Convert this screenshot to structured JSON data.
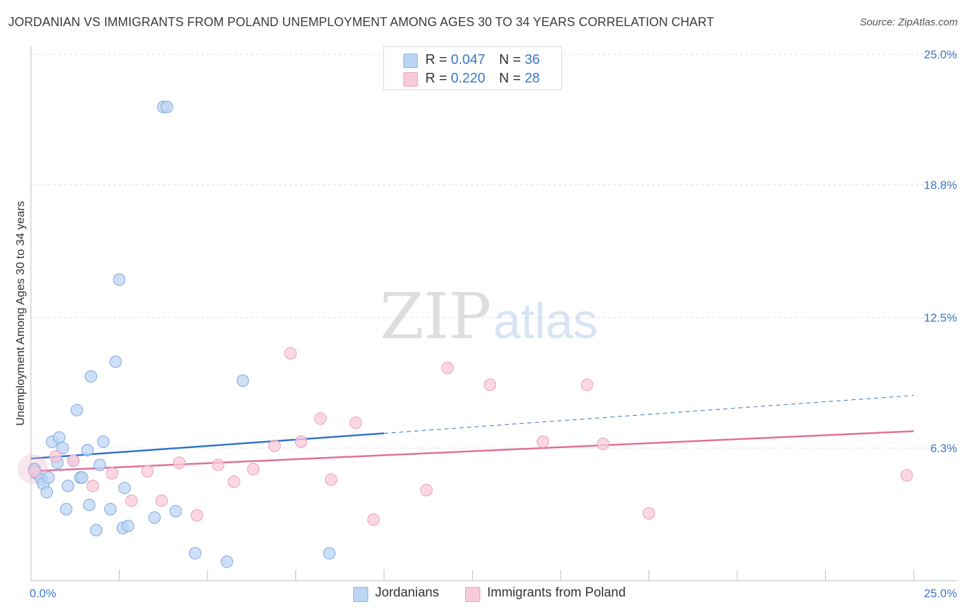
{
  "title": "JORDANIAN VS IMMIGRANTS FROM POLAND UNEMPLOYMENT AMONG AGES 30 TO 34 YEARS CORRELATION CHART",
  "source": "Source: ZipAtlas.com",
  "watermark": {
    "zip": "ZIP",
    "atlas": "atlas"
  },
  "legend": {
    "rows": [
      {
        "r_label": "R = ",
        "r_value": "0.047",
        "n_label": "N = ",
        "n_value": "36"
      },
      {
        "r_label": "R = ",
        "r_value": "0.220",
        "n_label": "N = ",
        "n_value": "28"
      }
    ]
  },
  "bottom_legend": [
    "Jordanians",
    "Immigrants from Poland"
  ],
  "chart_data": {
    "type": "scatter",
    "title": "JORDANIAN VS IMMIGRANTS FROM POLAND UNEMPLOYMENT AMONG AGES 30 TO 34 YEARS CORRELATION CHART",
    "xlabel": "",
    "ylabel": "Unemployment Among Ages 30 to 34 years",
    "xlim": [
      0,
      25
    ],
    "ylim": [
      0,
      25
    ],
    "x_tick_labels": [
      "0.0%",
      "25.0%"
    ],
    "y_ticks": [
      6.3,
      12.5,
      18.8,
      25.0
    ],
    "y_tick_labels": [
      "6.3%",
      "12.5%",
      "18.8%",
      "25.0%"
    ],
    "grid": true,
    "colors": {
      "Jordanians": "#a9c8f0",
      "Jordanians_line": "#2f72c8",
      "Immigrants from Poland": "#f6bdd0",
      "Immigrants from Poland_line": "#e26d9a",
      "tick_label": "#3a78c9"
    },
    "series": [
      {
        "name": "Jordanians",
        "R": 0.047,
        "N": 36,
        "trend": {
          "x0": 0,
          "y0": 5.8,
          "x1": 10,
          "y1": 7.0,
          "dashed_to_x": 25,
          "dashed_to_y": 8.8
        },
        "points": [
          [
            0.15,
            5.1
          ],
          [
            0.3,
            4.8
          ],
          [
            0.35,
            4.6
          ],
          [
            0.45,
            4.2
          ],
          [
            0.5,
            4.9
          ],
          [
            0.6,
            6.6
          ],
          [
            0.75,
            5.6
          ],
          [
            0.8,
            6.8
          ],
          [
            0.9,
            6.3
          ],
          [
            1.0,
            3.4
          ],
          [
            1.05,
            4.5
          ],
          [
            1.2,
            5.7
          ],
          [
            1.3,
            8.1
          ],
          [
            1.4,
            4.9
          ],
          [
            1.45,
            4.9
          ],
          [
            1.6,
            6.2
          ],
          [
            1.65,
            3.6
          ],
          [
            1.7,
            9.7
          ],
          [
            1.85,
            2.4
          ],
          [
            1.95,
            5.5
          ],
          [
            2.05,
            6.6
          ],
          [
            2.25,
            3.4
          ],
          [
            2.4,
            10.4
          ],
          [
            2.5,
            14.3
          ],
          [
            2.6,
            2.5
          ],
          [
            2.65,
            4.4
          ],
          [
            2.75,
            2.6
          ],
          [
            3.5,
            3.0
          ],
          [
            3.75,
            22.5
          ],
          [
            3.85,
            22.5
          ],
          [
            4.1,
            3.3
          ],
          [
            4.65,
            1.3
          ],
          [
            5.55,
            0.9
          ],
          [
            6.0,
            9.5
          ],
          [
            8.45,
            1.3
          ],
          [
            0.1,
            5.3
          ]
        ]
      },
      {
        "name": "Immigrants from Poland",
        "R": 0.22,
        "N": 28,
        "trend": {
          "x0": 0,
          "y0": 5.2,
          "x1": 25,
          "y1": 7.1
        },
        "points": [
          [
            0.1,
            5.2
          ],
          [
            0.7,
            5.9
          ],
          [
            1.2,
            5.7
          ],
          [
            1.75,
            4.5
          ],
          [
            2.3,
            5.1
          ],
          [
            2.85,
            3.8
          ],
          [
            3.3,
            5.2
          ],
          [
            3.7,
            3.8
          ],
          [
            4.2,
            5.6
          ],
          [
            4.7,
            3.1
          ],
          [
            5.3,
            5.5
          ],
          [
            5.75,
            4.7
          ],
          [
            6.3,
            5.3
          ],
          [
            6.9,
            6.4
          ],
          [
            7.35,
            10.8
          ],
          [
            7.65,
            6.6
          ],
          [
            8.2,
            7.7
          ],
          [
            8.5,
            4.8
          ],
          [
            9.2,
            7.5
          ],
          [
            9.7,
            2.9
          ],
          [
            11.2,
            4.3
          ],
          [
            11.8,
            10.1
          ],
          [
            13.0,
            9.3
          ],
          [
            14.5,
            6.6
          ],
          [
            15.75,
            9.3
          ],
          [
            16.2,
            6.5
          ],
          [
            17.5,
            3.2
          ],
          [
            24.8,
            5.0
          ]
        ]
      }
    ]
  }
}
